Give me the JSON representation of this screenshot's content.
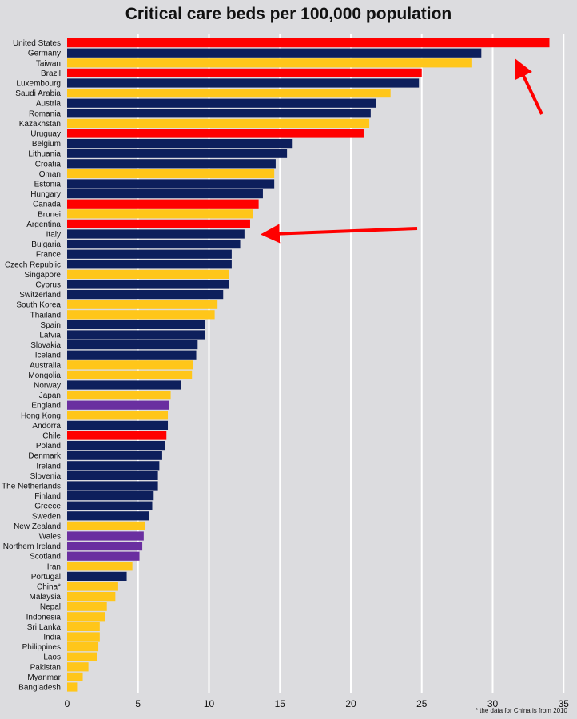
{
  "colors": {
    "background": "#dcdcdf",
    "gridline": "#ffffff",
    "red": "#ff0000",
    "navy": "#0d1f5c",
    "yellow": "#ffc61a",
    "purple": "#6a2fa0",
    "annotation_arrow": "#ff0000"
  },
  "footnote": "* the data for China is from 2010",
  "chart_data": {
    "type": "bar",
    "orientation": "horizontal",
    "title": "Critical care beds per 100,000 population",
    "xlabel": "",
    "ylabel": "",
    "xlim": [
      0,
      35
    ],
    "xticks": [
      0,
      5,
      10,
      15,
      20,
      25,
      30,
      35
    ],
    "grid": "vertical",
    "legend": "none",
    "annotations": [
      {
        "type": "arrow",
        "points_to": "United States",
        "color": "red"
      },
      {
        "type": "arrow",
        "points_to": "Italy",
        "color": "red"
      }
    ],
    "categories": [
      "United States",
      "Germany",
      "Taiwan",
      "Brazil",
      "Luxembourg",
      "Saudi Arabia",
      "Austria",
      "Romania",
      "Kazakhstan",
      "Uruguay",
      "Belgium",
      "Lithuania",
      "Croatia",
      "Oman",
      "Estonia",
      "Hungary",
      "Canada",
      "Brunei",
      "Argentina",
      "Italy",
      "Bulgaria",
      "France",
      "Czech Republic",
      "Singapore",
      "Cyprus",
      "Switzerland",
      "South Korea",
      "Thailand",
      "Spain",
      "Latvia",
      "Slovakia",
      "Iceland",
      "Australia",
      "Mongolia",
      "Norway",
      "Japan",
      "England",
      "Hong Kong",
      "Andorra",
      "Chile",
      "Poland",
      "Denmark",
      "Ireland",
      "Slovenia",
      "The Netherlands",
      "Finland",
      "Greece",
      "Sweden",
      "New Zealand",
      "Wales",
      "Northern Ireland",
      "Scotland",
      "Iran",
      "Portugal",
      "China*",
      "Malaysia",
      "Nepal",
      "Indonesia",
      "Sri Lanka",
      "India",
      "Philippines",
      "Laos",
      "Pakistan",
      "Myanmar",
      "Bangladesh"
    ],
    "values": [
      34.0,
      29.2,
      28.5,
      25.0,
      24.8,
      22.8,
      21.8,
      21.4,
      21.3,
      20.9,
      15.9,
      15.5,
      14.7,
      14.6,
      14.6,
      13.8,
      13.5,
      13.1,
      12.9,
      12.5,
      12.2,
      11.6,
      11.6,
      11.4,
      11.4,
      11.0,
      10.6,
      10.4,
      9.7,
      9.7,
      9.2,
      9.1,
      8.9,
      8.8,
      8.0,
      7.3,
      7.2,
      7.1,
      7.1,
      7.0,
      6.9,
      6.7,
      6.5,
      6.4,
      6.4,
      6.1,
      6.0,
      5.8,
      5.5,
      5.4,
      5.3,
      5.1,
      4.6,
      4.2,
      3.6,
      3.4,
      2.8,
      2.7,
      2.3,
      2.3,
      2.2,
      2.1,
      1.5,
      1.1,
      0.7
    ],
    "bar_colors": [
      "red",
      "navy",
      "yellow",
      "red",
      "navy",
      "yellow",
      "navy",
      "navy",
      "yellow",
      "red",
      "navy",
      "navy",
      "navy",
      "yellow",
      "navy",
      "navy",
      "red",
      "yellow",
      "red",
      "navy",
      "navy",
      "navy",
      "navy",
      "yellow",
      "navy",
      "navy",
      "yellow",
      "yellow",
      "navy",
      "navy",
      "navy",
      "navy",
      "yellow",
      "yellow",
      "navy",
      "yellow",
      "purple",
      "yellow",
      "navy",
      "red",
      "navy",
      "navy",
      "navy",
      "navy",
      "navy",
      "navy",
      "navy",
      "navy",
      "yellow",
      "purple",
      "purple",
      "purple",
      "yellow",
      "navy",
      "yellow",
      "yellow",
      "yellow",
      "yellow",
      "yellow",
      "yellow",
      "yellow",
      "yellow",
      "yellow",
      "yellow",
      "yellow"
    ]
  }
}
